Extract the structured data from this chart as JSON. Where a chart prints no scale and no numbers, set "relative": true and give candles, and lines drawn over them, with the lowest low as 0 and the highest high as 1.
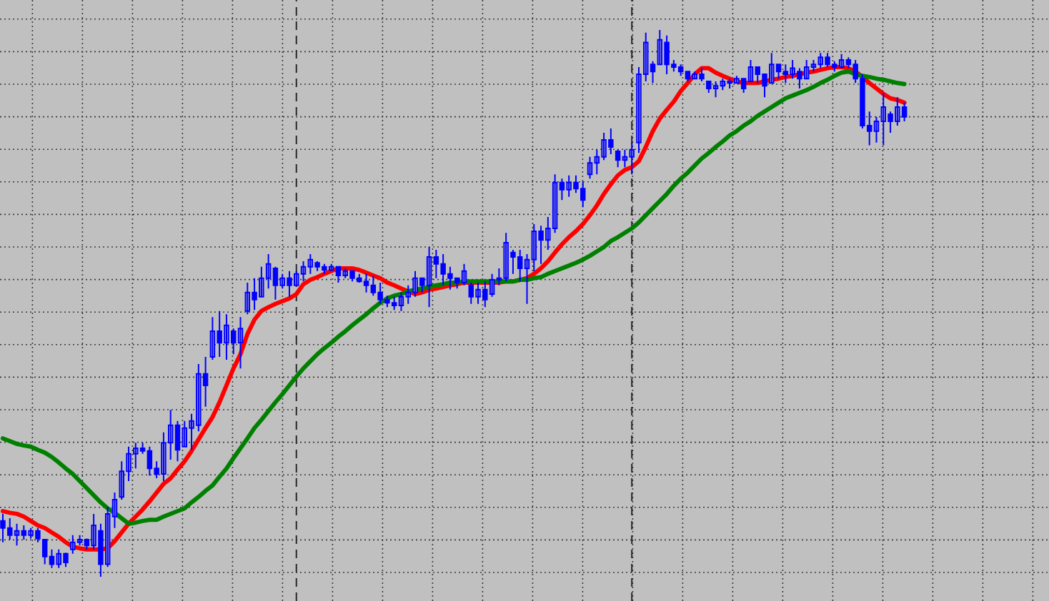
{
  "chart_data": {
    "type": "candlestick",
    "relative": true,
    "grid": true,
    "color": "#0000ff",
    "categories": [
      null,
      null,
      null,
      null,
      null,
      null,
      null,
      null,
      null,
      null,
      null,
      null,
      null,
      null,
      null,
      null,
      null,
      null,
      null,
      null,
      null,
      null,
      null,
      null,
      null,
      null,
      null,
      null,
      null,
      null,
      null,
      null,
      null,
      null,
      null,
      null,
      null,
      null,
      null,
      null,
      null,
      null,
      null,
      null,
      null,
      null,
      null,
      null,
      null,
      null,
      null,
      null,
      null,
      null,
      null,
      null,
      null,
      null,
      null,
      null,
      null,
      null,
      null,
      null,
      null,
      null,
      null,
      null,
      null,
      null,
      null,
      null,
      null,
      null,
      null,
      null,
      null,
      null,
      null,
      null,
      null,
      null,
      null,
      null,
      null,
      null,
      null,
      null,
      null,
      null,
      null,
      null,
      null,
      null,
      null,
      null,
      null,
      null,
      null,
      null,
      null,
      null,
      null,
      null,
      null,
      null,
      null,
      null,
      null,
      null,
      null,
      null,
      null,
      null,
      null,
      null,
      null,
      null,
      null,
      null,
      null,
      null,
      null,
      null,
      null,
      null,
      null,
      null,
      null,
      null
    ],
    "ohlc": [
      [
        0.102,
        0.115,
        0.063,
        0.089
      ],
      [
        0.089,
        0.107,
        0.068,
        0.076
      ],
      [
        0.076,
        0.097,
        0.057,
        0.084
      ],
      [
        0.084,
        0.094,
        0.068,
        0.076
      ],
      [
        0.076,
        0.089,
        0.07,
        0.084
      ],
      [
        0.084,
        0.089,
        0.063,
        0.07
      ],
      [
        0.068,
        0.068,
        0.023,
        0.037
      ],
      [
        0.037,
        0.05,
        0.016,
        0.023
      ],
      [
        0.023,
        0.05,
        0.016,
        0.042
      ],
      [
        0.042,
        0.044,
        0.018,
        0.026
      ],
      [
        0.05,
        0.076,
        0.042,
        0.063
      ],
      [
        0.063,
        0.076,
        0.057,
        0.068
      ],
      [
        0.068,
        0.07,
        0.05,
        0.057
      ],
      [
        0.057,
        0.115,
        0.05,
        0.094
      ],
      [
        0.084,
        0.097,
        0,
        0.023
      ],
      [
        0.023,
        0.128,
        0.018,
        0.115
      ],
      [
        0.11,
        0.154,
        0.089,
        0.141
      ],
      [
        0.146,
        0.211,
        0.141,
        0.193
      ],
      [
        0.193,
        0.238,
        0.175,
        0.225
      ],
      [
        0.225,
        0.245,
        0.198,
        0.235
      ],
      [
        0.235,
        0.245,
        0.225,
        0.23
      ],
      [
        0.23,
        0.238,
        0.185,
        0.198
      ],
      [
        0.198,
        0.211,
        0.18,
        0.188
      ],
      [
        0.188,
        0.264,
        0.175,
        0.245
      ],
      [
        0.245,
        0.305,
        0.214,
        0.277
      ],
      [
        0.277,
        0.285,
        0.211,
        0.232
      ],
      [
        0.238,
        0.285,
        0.238,
        0.272
      ],
      [
        0.272,
        0.298,
        0.232,
        0.285
      ],
      [
        0.277,
        0.389,
        0.266,
        0.371
      ],
      [
        0.371,
        0.402,
        0.311,
        0.35
      ],
      [
        0.402,
        0.475,
        0.397,
        0.449
      ],
      [
        0.449,
        0.486,
        0.402,
        0.428
      ],
      [
        0.428,
        0.48,
        0.397,
        0.46
      ],
      [
        0.449,
        0.454,
        0.407,
        0.428
      ],
      [
        0.428,
        0.475,
        0.381,
        0.454
      ],
      [
        0.486,
        0.538,
        0.48,
        0.52
      ],
      [
        0.52,
        0.546,
        0.488,
        0.507
      ],
      [
        0.512,
        0.567,
        0.512,
        0.546
      ],
      [
        0.546,
        0.59,
        0.527,
        0.572
      ],
      [
        0.564,
        0.567,
        0.507,
        0.533
      ],
      [
        0.533,
        0.554,
        0.527,
        0.546
      ],
      [
        0.546,
        0.559,
        0.512,
        0.533
      ],
      [
        0.533,
        0.559,
        0.533,
        0.554
      ],
      [
        0.554,
        0.577,
        0.54,
        0.567
      ],
      [
        0.567,
        0.59,
        0.554,
        0.58
      ],
      [
        0.574,
        0.577,
        0.559,
        0.567
      ],
      [
        0.567,
        0.572,
        0.554,
        0.561
      ],
      [
        0.561,
        0.572,
        0.559,
        0.567
      ],
      [
        0.567,
        0.567,
        0.538,
        0.551
      ],
      [
        0.551,
        0.564,
        0.546,
        0.559
      ],
      [
        0.559,
        0.559,
        0.54,
        0.546
      ],
      [
        0.546,
        0.554,
        0.538,
        0.54
      ],
      [
        0.54,
        0.554,
        0.52,
        0.533
      ],
      [
        0.533,
        0.551,
        0.514,
        0.52
      ],
      [
        0.52,
        0.538,
        0.499,
        0.507
      ],
      [
        0.507,
        0.514,
        0.493,
        0.501
      ],
      [
        0.501,
        0.512,
        0.488,
        0.496
      ],
      [
        0.496,
        0.52,
        0.486,
        0.512
      ],
      [
        0.512,
        0.533,
        0.499,
        0.52
      ],
      [
        0.52,
        0.559,
        0.512,
        0.546
      ],
      [
        0.546,
        0.546,
        0.52,
        0.533
      ],
      [
        0.533,
        0.603,
        0.493,
        0.585
      ],
      [
        0.585,
        0.598,
        0.546,
        0.572
      ],
      [
        0.572,
        0.59,
        0.533,
        0.554
      ],
      [
        0.554,
        0.567,
        0.525,
        0.546
      ],
      [
        0.546,
        0.546,
        0.527,
        0.538
      ],
      [
        0.538,
        0.572,
        0.533,
        0.559
      ],
      [
        0.533,
        0.538,
        0.499,
        0.512
      ],
      [
        0.512,
        0.538,
        0.499,
        0.525
      ],
      [
        0.525,
        0.54,
        0.493,
        0.507
      ],
      [
        0.517,
        0.554,
        0.512,
        0.543
      ],
      [
        0.543,
        0.564,
        0.533,
        0.546
      ],
      [
        0.546,
        0.629,
        0.54,
        0.611
      ],
      [
        0.593,
        0.598,
        0.554,
        0.585
      ],
      [
        0.585,
        0.598,
        0.54,
        0.564
      ],
      [
        0.564,
        0.59,
        0.499,
        0.58
      ],
      [
        0.58,
        0.645,
        0.559,
        0.632
      ],
      [
        0.632,
        0.642,
        0.572,
        0.616
      ],
      [
        0.616,
        0.658,
        0.598,
        0.637
      ],
      [
        0.637,
        0.736,
        0.629,
        0.721
      ],
      [
        0.721,
        0.728,
        0.689,
        0.708
      ],
      [
        0.708,
        0.734,
        0.695,
        0.721
      ],
      [
        0.721,
        0.734,
        0.702,
        0.71
      ],
      [
        0.71,
        0.723,
        0.676,
        0.689
      ],
      [
        0.736,
        0.768,
        0.728,
        0.757
      ],
      [
        0.757,
        0.781,
        0.736,
        0.768
      ],
      [
        0.768,
        0.812,
        0.762,
        0.799
      ],
      [
        0.799,
        0.82,
        0.773,
        0.786
      ],
      [
        0.778,
        0.781,
        0.749,
        0.762
      ],
      [
        0.762,
        0.781,
        0.749,
        0.768
      ],
      [
        0.768,
        0.794,
        0.736,
        0.781
      ],
      [
        0.794,
        0.932,
        0.775,
        0.919
      ],
      [
        0.919,
        0.995,
        0.906,
        0.977
      ],
      [
        0.937,
        0.943,
        0.903,
        0.924
      ],
      [
        0.937,
        1,
        0.937,
        0.982
      ],
      [
        0.977,
        0.99,
        0.919,
        0.937
      ],
      [
        0.937,
        0.945,
        0.924,
        0.932
      ],
      [
        0.932,
        0.937,
        0.916,
        0.924
      ],
      [
        0.924,
        0.924,
        0.906,
        0.911
      ],
      [
        0.911,
        0.924,
        0.911,
        0.919
      ],
      [
        0.919,
        0.93,
        0.906,
        0.911
      ],
      [
        0.906,
        0.906,
        0.885,
        0.893
      ],
      [
        0.893,
        0.906,
        0.877,
        0.898
      ],
      [
        0.898,
        0.911,
        0.89,
        0.906
      ],
      [
        0.906,
        0.911,
        0.893,
        0.903
      ],
      [
        0.903,
        0.916,
        0.903,
        0.911
      ],
      [
        0.911,
        0.911,
        0.885,
        0.893
      ],
      [
        0.906,
        0.945,
        0.906,
        0.932
      ],
      [
        0.932,
        0.932,
        0.903,
        0.919
      ],
      [
        0.919,
        0.919,
        0.877,
        0.898
      ],
      [
        0.903,
        0.958,
        0.903,
        0.937
      ],
      [
        0.937,
        0.937,
        0.911,
        0.924
      ],
      [
        0.924,
        0.937,
        0.903,
        0.919
      ],
      [
        0.919,
        0.945,
        0.911,
        0.93
      ],
      [
        0.924,
        0.93,
        0.893,
        0.911
      ],
      [
        0.911,
        0.945,
        0.911,
        0.932
      ],
      [
        0.932,
        0.945,
        0.924,
        0.937
      ],
      [
        0.937,
        0.958,
        0.93,
        0.95
      ],
      [
        0.95,
        0.958,
        0.932,
        0.937
      ],
      [
        0.937,
        0.943,
        0.924,
        0.932
      ],
      [
        0.932,
        0.956,
        0.93,
        0.945
      ],
      [
        0.945,
        0.95,
        0.93,
        0.937
      ],
      [
        0.937,
        0.945,
        0.903,
        0.911
      ],
      [
        0.911,
        0.919,
        0.82,
        0.825
      ],
      [
        0.825,
        0.851,
        0.789,
        0.815
      ],
      [
        0.815,
        0.841,
        0.794,
        0.833
      ],
      [
        0.833,
        0.885,
        0.789,
        0.859
      ],
      [
        0.846,
        0.851,
        0.812,
        0.833
      ],
      [
        0.833,
        0.877,
        0.825,
        0.859
      ],
      [
        0.859,
        0.867,
        0.833,
        0.841
      ]
    ],
    "series": [
      {
        "type": "line",
        "color": "#ff0000",
        "values": [
          0.12,
          0.117,
          0.115,
          0.11,
          0.102,
          0.094,
          0.089,
          0.081,
          0.073,
          0.063,
          0.055,
          0.052,
          0.05,
          0.05,
          0.05,
          0.052,
          0.065,
          0.081,
          0.097,
          0.11,
          0.123,
          0.138,
          0.154,
          0.17,
          0.18,
          0.196,
          0.211,
          0.23,
          0.251,
          0.272,
          0.292,
          0.319,
          0.35,
          0.381,
          0.407,
          0.444,
          0.47,
          0.486,
          0.493,
          0.499,
          0.504,
          0.509,
          0.517,
          0.535,
          0.543,
          0.548,
          0.554,
          0.559,
          0.564,
          0.564,
          0.564,
          0.561,
          0.556,
          0.551,
          0.546,
          0.538,
          0.533,
          0.527,
          0.522,
          0.517,
          0.52,
          0.525,
          0.527,
          0.53,
          0.533,
          0.535,
          0.538,
          0.538,
          0.538,
          0.538,
          0.538,
          0.538,
          0.54,
          0.54,
          0.543,
          0.546,
          0.554,
          0.564,
          0.577,
          0.593,
          0.608,
          0.621,
          0.632,
          0.645,
          0.661,
          0.679,
          0.7,
          0.718,
          0.734,
          0.744,
          0.749,
          0.76,
          0.786,
          0.815,
          0.838,
          0.854,
          0.869,
          0.888,
          0.903,
          0.919,
          0.93,
          0.93,
          0.922,
          0.916,
          0.911,
          0.906,
          0.903,
          0.903,
          0.903,
          0.906,
          0.909,
          0.911,
          0.914,
          0.916,
          0.919,
          0.922,
          0.924,
          0.927,
          0.93,
          0.932,
          0.932,
          0.93,
          0.924,
          0.914,
          0.903,
          0.893,
          0.883,
          0.875,
          0.872,
          0.867
        ]
      },
      {
        "type": "line",
        "color": "#008000",
        "values": [
          0.253,
          0.248,
          0.243,
          0.24,
          0.238,
          0.232,
          0.227,
          0.219,
          0.209,
          0.198,
          0.188,
          0.175,
          0.162,
          0.149,
          0.136,
          0.125,
          0.117,
          0.107,
          0.097,
          0.099,
          0.102,
          0.104,
          0.104,
          0.11,
          0.115,
          0.12,
          0.125,
          0.136,
          0.146,
          0.157,
          0.167,
          0.183,
          0.198,
          0.217,
          0.235,
          0.253,
          0.272,
          0.287,
          0.303,
          0.319,
          0.334,
          0.35,
          0.366,
          0.381,
          0.394,
          0.407,
          0.418,
          0.428,
          0.439,
          0.449,
          0.46,
          0.47,
          0.48,
          0.491,
          0.501,
          0.509,
          0.514,
          0.517,
          0.522,
          0.525,
          0.527,
          0.53,
          0.533,
          0.535,
          0.538,
          0.538,
          0.54,
          0.54,
          0.54,
          0.54,
          0.54,
          0.54,
          0.54,
          0.54,
          0.543,
          0.543,
          0.546,
          0.548,
          0.554,
          0.559,
          0.564,
          0.569,
          0.574,
          0.58,
          0.587,
          0.595,
          0.603,
          0.614,
          0.621,
          0.629,
          0.637,
          0.648,
          0.661,
          0.674,
          0.687,
          0.7,
          0.715,
          0.728,
          0.739,
          0.752,
          0.765,
          0.775,
          0.786,
          0.796,
          0.807,
          0.815,
          0.825,
          0.833,
          0.843,
          0.851,
          0.859,
          0.867,
          0.875,
          0.88,
          0.885,
          0.89,
          0.896,
          0.903,
          0.909,
          0.916,
          0.922,
          0.924,
          0.919,
          0.916,
          0.914,
          0.911,
          0.909,
          0.906,
          0.903,
          0.901
        ]
      }
    ]
  }
}
